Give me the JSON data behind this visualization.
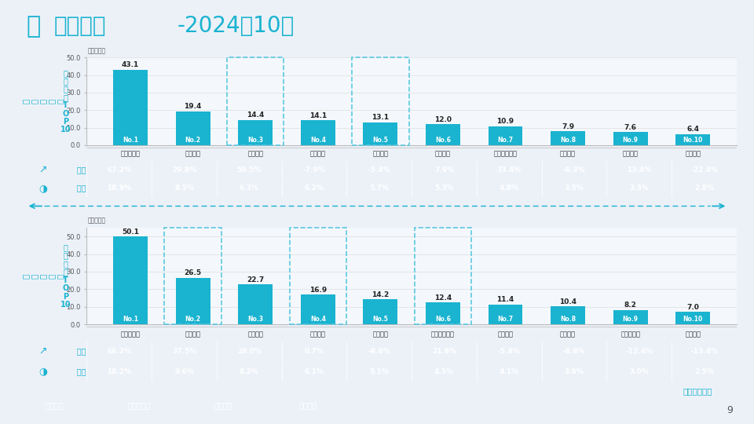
{
  "title_bold": "厂商排名",
  "title_suffix": "-2024年10月",
  "bg_color": "#ecf1f8",
  "chart_bg": "#f4f8fc",
  "bar_color": "#1ab3d0",
  "highlight_border": "#5bc8e0",
  "table_row1_bg": "#1ab3d0",
  "table_row2_bg": "#5bc8de",
  "white": "#ffffff",
  "top": {
    "unit": "单位：万辆",
    "ylabel1": "广\n义\n乘\n用\n车",
    "ylabel2": "零\n售\n销\n量\nT\nO\nP\n10",
    "ylim": [
      0,
      50
    ],
    "yticks": [
      0.0,
      10.0,
      20.0,
      30.0,
      40.0,
      50.0
    ],
    "cats": [
      "比亚迪汽车",
      "吉利汽车",
      "奇瑞汽车",
      "一汽大众",
      "长安汽车",
      "上汽大众",
      "上汽通用五菱",
      "广汽丰田",
      "一汽丰田",
      "长城汽车"
    ],
    "vals": [
      43.1,
      19.4,
      14.4,
      14.1,
      13.1,
      12.0,
      10.9,
      7.9,
      7.6,
      6.4
    ],
    "ranks": [
      "No.1",
      "No.2",
      "No.3",
      "No.4",
      "No.5",
      "No.6",
      "No.7",
      "No.8",
      "No.9",
      "No.10"
    ],
    "highlighted_idx": [
      2,
      4
    ],
    "tongbi": [
      "67.2%",
      "29.8%",
      "59.5%",
      "-7.9%",
      "-5.4%",
      "7.9%",
      "33.4%",
      "-6.3%",
      "13.4%",
      "-22.4%"
    ],
    "fenei": [
      "18.9%",
      "8.5%",
      "6.3%",
      "6.2%",
      "5.7%",
      "5.3%",
      "4.8%",
      "3.5%",
      "3.3%",
      "2.8%"
    ]
  },
  "bottom": {
    "unit": "单位：万辆",
    "ylabel1": "广\n义\n乘\n用\n车",
    "ylabel2": "批\n发\n销\n量\nT\nO\nP\n10",
    "ylim": [
      0,
      55
    ],
    "yticks": [
      0.0,
      10.0,
      20.0,
      30.0,
      40.0,
      50.0
    ],
    "cats": [
      "比亚迪汽车",
      "奇瑞汽车",
      "吉利汽车",
      "长安汽车",
      "一汽大众",
      "上汽通用五菱",
      "上汽大众",
      "长城汽车",
      "上汽乘用车",
      "广汽丰田"
    ],
    "vals": [
      50.1,
      26.5,
      22.7,
      16.9,
      14.2,
      12.4,
      11.4,
      10.4,
      8.2,
      7.0
    ],
    "ranks": [
      "No.1",
      "No.2",
      "No.3",
      "No.4",
      "No.5",
      "No.6",
      "No.7",
      "No.8",
      "No.9",
      "No.10"
    ],
    "highlighted_idx": [
      1,
      3,
      5
    ],
    "tongbi": [
      "66.2%",
      "37.5%",
      "28.0%",
      "0.7%",
      "-8.8%",
      "21.8%",
      "-5.4%",
      "-8.8%",
      "-12.4%",
      "-13.4%"
    ],
    "fenei": [
      "18.2%",
      "9.6%",
      "8.2%",
      "6.1%",
      "5.1%",
      "4.5%",
      "4.1%",
      "3.8%",
      "3.0%",
      "2.5%"
    ]
  },
  "nav_items": [
    "总体判断",
    "新能源消费",
    "厂商排名",
    "市场分析"
  ],
  "nav_active_idx": 2,
  "nav_inactive_color": "#8fa8c0",
  "nav_active_color": "#1ab3d0",
  "footer": "月度信息发布",
  "page": "9"
}
